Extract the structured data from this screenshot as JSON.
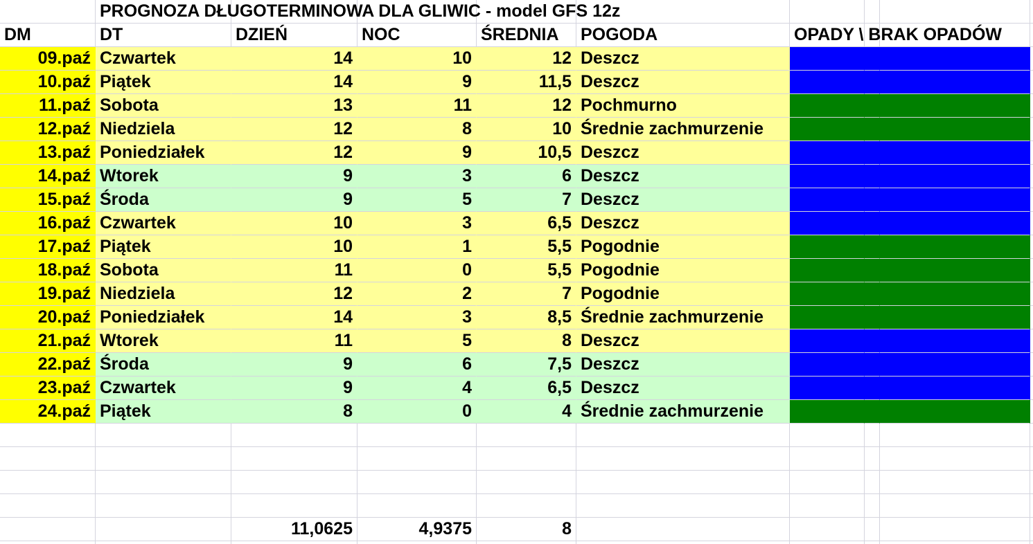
{
  "title": "PROGNOZA DŁUGOTERMINOWA DLA GLIWIC - model GFS 12z",
  "headers": {
    "dm": "DM",
    "dt": "DT",
    "dzien": "DZIEŃ",
    "noc": "NOC",
    "srednia": "ŚREDNIA",
    "pogoda": "POGODA",
    "opady": "OPADY \\ BRAK OPADÓW"
  },
  "colors": {
    "date_col": "#ffff00",
    "week1": "#ffff99",
    "week2": "#ccffcc",
    "rain": "#0000ff",
    "no_rain": "#008000"
  },
  "rows": [
    {
      "dm": "09.paź",
      "dt": "Czwartek",
      "dzien": "14",
      "noc": "10",
      "srednia": "12",
      "pogoda": "Deszcz",
      "band": "week1",
      "precip": "rain"
    },
    {
      "dm": "10.paź",
      "dt": "Piątek",
      "dzien": "14",
      "noc": "9",
      "srednia": "11,5",
      "pogoda": "Deszcz",
      "band": "week1",
      "precip": "rain"
    },
    {
      "dm": "11.paź",
      "dt": "Sobota",
      "dzien": "13",
      "noc": "11",
      "srednia": "12",
      "pogoda": "Pochmurno",
      "band": "week1",
      "precip": "no_rain"
    },
    {
      "dm": "12.paź",
      "dt": "Niedziela",
      "dzien": "12",
      "noc": "8",
      "srednia": "10",
      "pogoda": "Średnie zachmurzenie",
      "band": "week1",
      "precip": "no_rain"
    },
    {
      "dm": "13.paź",
      "dt": "Poniedziałek",
      "dzien": "12",
      "noc": "9",
      "srednia": "10,5",
      "pogoda": "Deszcz",
      "band": "week1",
      "precip": "rain"
    },
    {
      "dm": "14.paź",
      "dt": "Wtorek",
      "dzien": "9",
      "noc": "3",
      "srednia": "6",
      "pogoda": "Deszcz",
      "band": "week2",
      "precip": "rain"
    },
    {
      "dm": "15.paź",
      "dt": "Środa",
      "dzien": "9",
      "noc": "5",
      "srednia": "7",
      "pogoda": "Deszcz",
      "band": "week2",
      "precip": "rain"
    },
    {
      "dm": "16.paź",
      "dt": "Czwartek",
      "dzien": "10",
      "noc": "3",
      "srednia": "6,5",
      "pogoda": "Deszcz",
      "band": "week1",
      "precip": "rain"
    },
    {
      "dm": "17.paź",
      "dt": "Piątek",
      "dzien": "10",
      "noc": "1",
      "srednia": "5,5",
      "pogoda": "Pogodnie",
      "band": "week1",
      "precip": "no_rain"
    },
    {
      "dm": "18.paź",
      "dt": "Sobota",
      "dzien": "11",
      "noc": "0",
      "srednia": "5,5",
      "pogoda": "Pogodnie",
      "band": "week1",
      "precip": "no_rain"
    },
    {
      "dm": "19.paź",
      "dt": "Niedziela",
      "dzien": "12",
      "noc": "2",
      "srednia": "7",
      "pogoda": "Pogodnie",
      "band": "week1",
      "precip": "no_rain"
    },
    {
      "dm": "20.paź",
      "dt": "Poniedziałek",
      "dzien": "14",
      "noc": "3",
      "srednia": "8,5",
      "pogoda": "Średnie zachmurzenie",
      "band": "week1",
      "precip": "no_rain"
    },
    {
      "dm": "21.paź",
      "dt": "Wtorek",
      "dzien": "11",
      "noc": "5",
      "srednia": "8",
      "pogoda": "Deszcz",
      "band": "week1",
      "precip": "rain"
    },
    {
      "dm": "22.paź",
      "dt": "Środa",
      "dzien": "9",
      "noc": "6",
      "srednia": "7,5",
      "pogoda": "Deszcz",
      "band": "week2",
      "precip": "rain"
    },
    {
      "dm": "23.paź",
      "dt": "Czwartek",
      "dzien": "9",
      "noc": "4",
      "srednia": "6,5",
      "pogoda": "Deszcz",
      "band": "week2",
      "precip": "rain"
    },
    {
      "dm": "24.paź",
      "dt": "Piątek",
      "dzien": "8",
      "noc": "0",
      "srednia": "4",
      "pogoda": "Średnie zachmurzenie",
      "band": "week2",
      "precip": "no_rain"
    }
  ],
  "totals": {
    "dzien": "11,0625",
    "noc": "4,9375",
    "srednia": "8"
  }
}
